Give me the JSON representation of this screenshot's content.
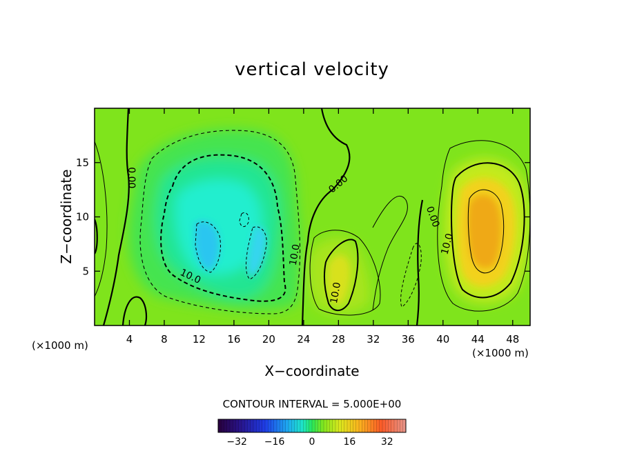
{
  "chart_data": {
    "type": "heatmap",
    "title": "vertical velocity",
    "xlabel": "X−coordinate",
    "ylabel": "Z−coordinate",
    "x_unit": "(×1000 m)",
    "x_ticks": [
      4,
      8,
      12,
      16,
      20,
      24,
      28,
      32,
      36,
      40,
      44,
      48
    ],
    "y_ticks": [
      5,
      10,
      15
    ],
    "xlim": [
      0,
      50
    ],
    "ylim": [
      0,
      20
    ],
    "contour_interval_text": "CONTOUR INTERVAL = 5.000E+00",
    "contour_labels": [
      {
        "text": "0.00",
        "x": 4.2,
        "y": 13.6,
        "rotation": 90
      },
      {
        "text": "0.00",
        "x": 28,
        "y": 13.0,
        "rotation": -40
      },
      {
        "text": "0.00",
        "x": 38.8,
        "y": 10.0,
        "rotation": 70
      },
      {
        "text": "10.0",
        "x": 11,
        "y": 4.5,
        "rotation": 25
      },
      {
        "text": "10.0",
        "x": 23,
        "y": 6.5,
        "rotation": -80
      },
      {
        "text": "10.0",
        "x": 27.7,
        "y": 3.0,
        "rotation": -80
      },
      {
        "text": "10.0",
        "x": 40.5,
        "y": 7.5,
        "rotation": -75
      }
    ],
    "field_features": [
      {
        "kind": "min",
        "x": 13,
        "y": 8,
        "value": -12
      },
      {
        "kind": "min",
        "x": 19,
        "y": 6.5,
        "value": -10
      },
      {
        "kind": "max",
        "x": 28,
        "y": 5,
        "value": 13
      },
      {
        "kind": "max",
        "x": 44,
        "y": 10,
        "value": 18
      }
    ],
    "colorbar": {
      "min": -40,
      "max": 40,
      "tick_values": [
        -32,
        -16,
        0,
        16,
        32
      ],
      "tick_labels": [
        "−32",
        "−16",
        "0",
        "16",
        "32"
      ]
    }
  }
}
